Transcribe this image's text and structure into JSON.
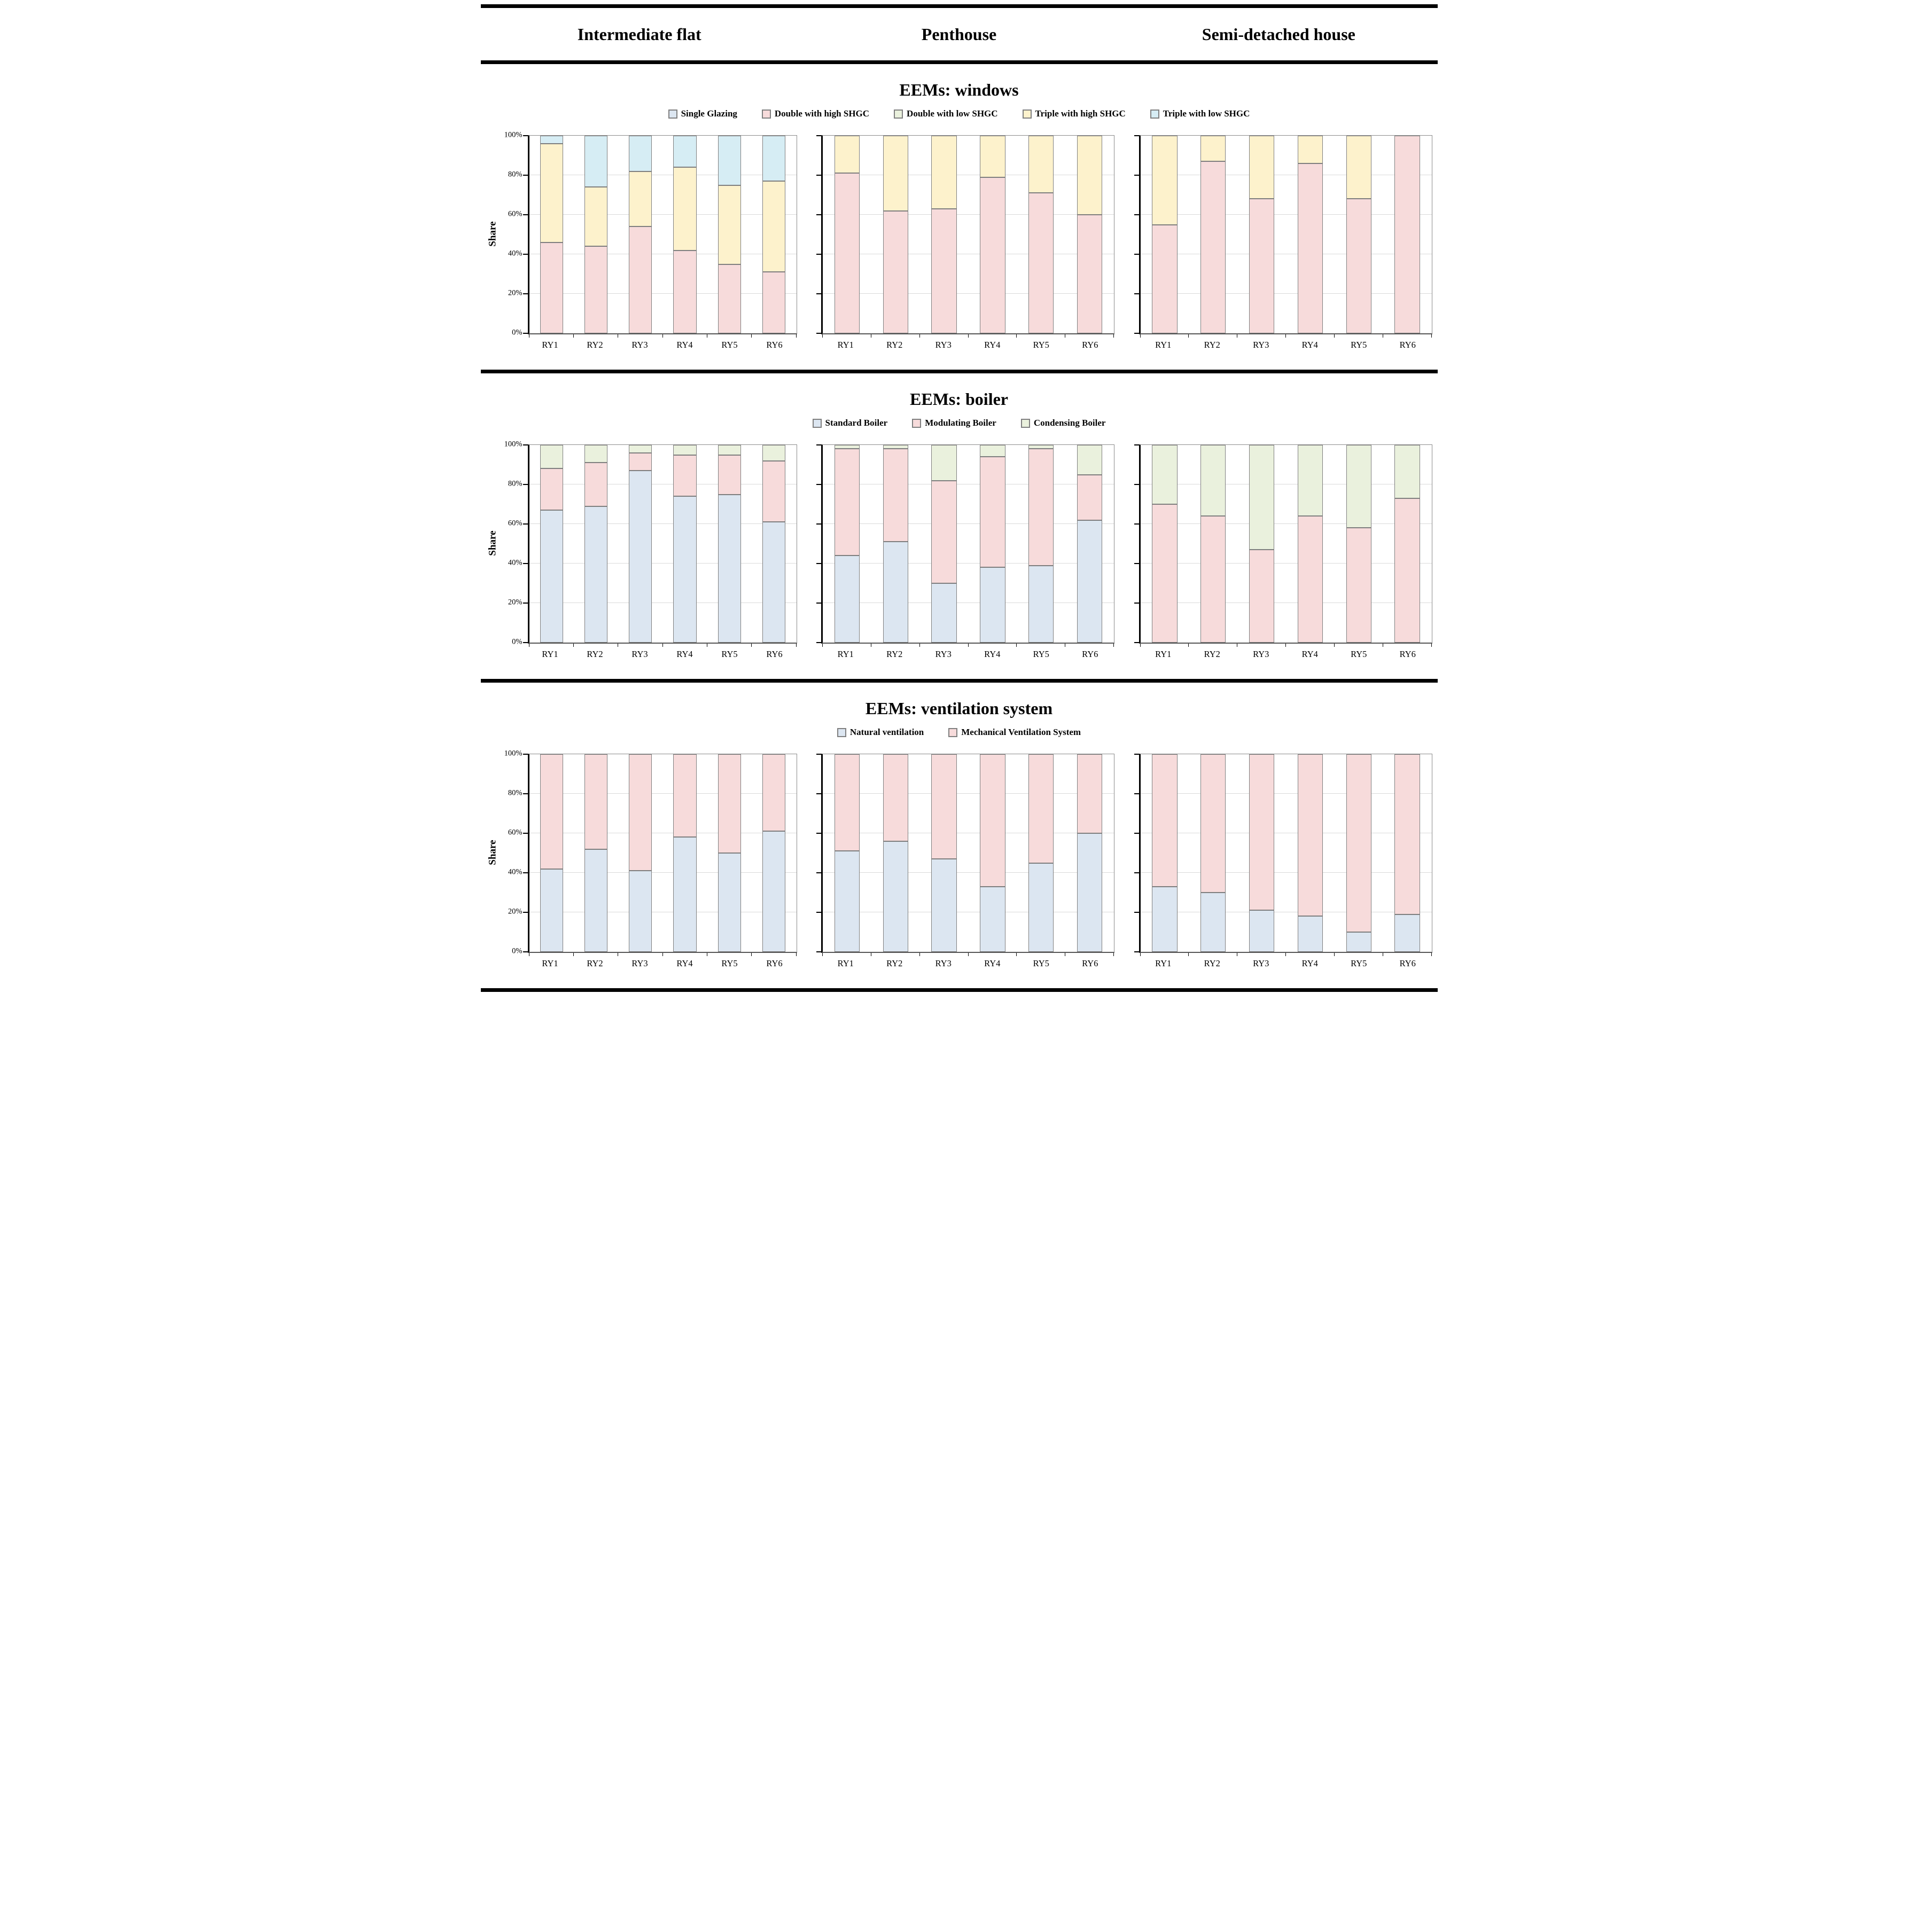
{
  "header": {
    "columns": [
      "Intermediate flat",
      "Penthouse",
      "Semi-detached house"
    ]
  },
  "y_axis": {
    "label": "Share",
    "ticks": [
      "0%",
      "20%",
      "40%",
      "60%",
      "80%",
      "100%"
    ],
    "tick_values": [
      0,
      20,
      40,
      60,
      80,
      100
    ]
  },
  "colors": {
    "bar_border": "#7F7F7F",
    "light_blue": "#DCE6F1",
    "pink": "#F7DBDB",
    "light_green": "#EAF1DD",
    "pale_yellow": "#FDF2CC",
    "light_cyan": "#D6EDF4"
  },
  "chart_data": {
    "type": "bar",
    "subtype": "stacked-100-percent",
    "categories": [
      "RY1",
      "RY2",
      "RY3",
      "RY4",
      "RY5",
      "RY6"
    ],
    "ylabel": "Share",
    "ylim": [
      0,
      100
    ],
    "grid": true,
    "legend_position": "top",
    "sections": [
      {
        "id": "windows",
        "title": "EEMs: windows",
        "legend": [
          {
            "label": "Single Glazing",
            "color": "#DCE6F1"
          },
          {
            "label": "Double with high SHGC",
            "color": "#F7DBDB"
          },
          {
            "label": "Double with low SHGC",
            "color": "#EAF1DD"
          },
          {
            "label": "Triple with high SHGC",
            "color": "#FDF2CC"
          },
          {
            "label": "Triple with low SHGC",
            "color": "#D6EDF4"
          }
        ],
        "charts": [
          {
            "building": "Intermediate flat",
            "series": [
              {
                "name": "Single Glazing",
                "values": [
                  0,
                  0,
                  0,
                  0,
                  0,
                  0
                ]
              },
              {
                "name": "Double with high SHGC",
                "values": [
                  46,
                  44,
                  54,
                  42,
                  35,
                  31
                ]
              },
              {
                "name": "Double with low SHGC",
                "values": [
                  0,
                  0,
                  0,
                  0,
                  0,
                  0
                ]
              },
              {
                "name": "Triple with high SHGC",
                "values": [
                  50,
                  30,
                  28,
                  42,
                  40,
                  46
                ]
              },
              {
                "name": "Triple with low SHGC",
                "values": [
                  4,
                  26,
                  18,
                  16,
                  25,
                  23
                ]
              }
            ]
          },
          {
            "building": "Penthouse",
            "series": [
              {
                "name": "Single Glazing",
                "values": [
                  0,
                  0,
                  0,
                  0,
                  0,
                  0
                ]
              },
              {
                "name": "Double with high SHGC",
                "values": [
                  81,
                  62,
                  63,
                  79,
                  71,
                  60
                ]
              },
              {
                "name": "Double with low SHGC",
                "values": [
                  0,
                  0,
                  0,
                  0,
                  0,
                  0
                ]
              },
              {
                "name": "Triple with high SHGC",
                "values": [
                  19,
                  38,
                  37,
                  21,
                  29,
                  40
                ]
              },
              {
                "name": "Triple with low SHGC",
                "values": [
                  0,
                  0,
                  0,
                  0,
                  0,
                  0
                ]
              }
            ]
          },
          {
            "building": "Semi-detached house",
            "series": [
              {
                "name": "Single Glazing",
                "values": [
                  0,
                  0,
                  0,
                  0,
                  0,
                  0
                ]
              },
              {
                "name": "Double with high SHGC",
                "values": [
                  55,
                  87,
                  68,
                  86,
                  68,
                  100
                ]
              },
              {
                "name": "Double with low SHGC",
                "values": [
                  0,
                  0,
                  0,
                  0,
                  0,
                  0
                ]
              },
              {
                "name": "Triple with high SHGC",
                "values": [
                  45,
                  13,
                  32,
                  14,
                  32,
                  0
                ]
              },
              {
                "name": "Triple with low SHGC",
                "values": [
                  0,
                  0,
                  0,
                  0,
                  0,
                  0
                ]
              }
            ]
          }
        ]
      },
      {
        "id": "boiler",
        "title": "EEMs: boiler",
        "legend": [
          {
            "label": "Standard Boiler",
            "color": "#DCE6F1"
          },
          {
            "label": "Modulating Boiler",
            "color": "#F7DBDB"
          },
          {
            "label": "Condensing Boiler",
            "color": "#EAF1DD"
          }
        ],
        "charts": [
          {
            "building": "Intermediate flat",
            "series": [
              {
                "name": "Standard Boiler",
                "values": [
                  67,
                  69,
                  87,
                  74,
                  75,
                  61
                ]
              },
              {
                "name": "Modulating Boiler",
                "values": [
                  21,
                  22,
                  9,
                  21,
                  20,
                  31
                ]
              },
              {
                "name": "Condensing Boiler",
                "values": [
                  12,
                  9,
                  4,
                  5,
                  5,
                  8
                ]
              }
            ]
          },
          {
            "building": "Penthouse",
            "series": [
              {
                "name": "Standard Boiler",
                "values": [
                  44,
                  51,
                  30,
                  38,
                  39,
                  62
                ]
              },
              {
                "name": "Modulating Boiler",
                "values": [
                  54,
                  47,
                  52,
                  56,
                  59,
                  23
                ]
              },
              {
                "name": "Condensing Boiler",
                "values": [
                  2,
                  2,
                  18,
                  6,
                  2,
                  15
                ]
              }
            ]
          },
          {
            "building": "Semi-detached house",
            "series": [
              {
                "name": "Standard Boiler",
                "values": [
                  0,
                  0,
                  0,
                  0,
                  0,
                  0
                ]
              },
              {
                "name": "Modulating Boiler",
                "values": [
                  70,
                  64,
                  47,
                  64,
                  58,
                  73
                ]
              },
              {
                "name": "Condensing Boiler",
                "values": [
                  30,
                  36,
                  53,
                  36,
                  42,
                  27
                ]
              }
            ]
          }
        ]
      },
      {
        "id": "ventilation",
        "title": "EEMs: ventilation system",
        "legend": [
          {
            "label": "Natural ventilation",
            "color": "#DCE6F1"
          },
          {
            "label": "Mechanical Ventilation System",
            "color": "#F7DBDB"
          }
        ],
        "charts": [
          {
            "building": "Intermediate flat",
            "series": [
              {
                "name": "Natural ventilation",
                "values": [
                  42,
                  52,
                  41,
                  58,
                  50,
                  61
                ]
              },
              {
                "name": "Mechanical Ventilation System",
                "values": [
                  58,
                  48,
                  59,
                  42,
                  50,
                  39
                ]
              }
            ]
          },
          {
            "building": "Penthouse",
            "series": [
              {
                "name": "Natural ventilation",
                "values": [
                  51,
                  56,
                  47,
                  33,
                  45,
                  60
                ]
              },
              {
                "name": "Mechanical Ventilation System",
                "values": [
                  49,
                  44,
                  53,
                  67,
                  55,
                  40
                ]
              }
            ]
          },
          {
            "building": "Semi-detached house",
            "series": [
              {
                "name": "Natural ventilation",
                "values": [
                  33,
                  30,
                  21,
                  18,
                  10,
                  19
                ]
              },
              {
                "name": "Mechanical Ventilation System",
                "values": [
                  67,
                  70,
                  79,
                  82,
                  90,
                  81
                ]
              }
            ]
          }
        ]
      }
    ]
  }
}
